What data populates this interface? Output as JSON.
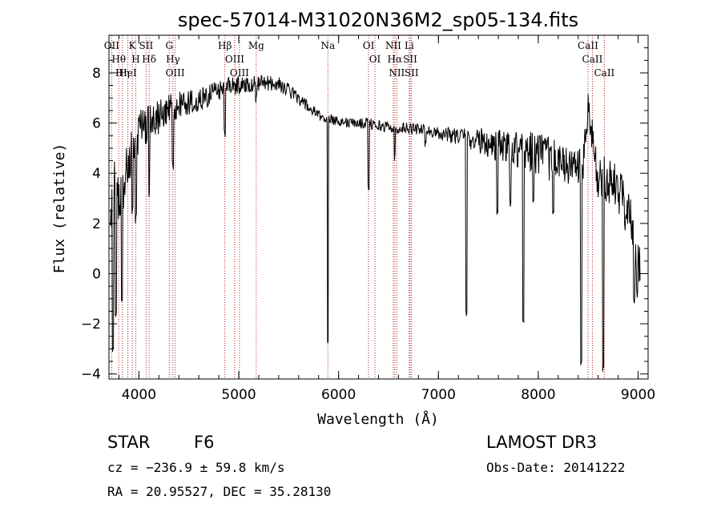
{
  "chart_data": {
    "type": "line",
    "title": "spec-57014-M31020N36M2_sp05-134.fits",
    "xlabel": "Wavelength (Å)",
    "ylabel": "Flux (relative)",
    "xlim": [
      3700,
      9100
    ],
    "ylim": [
      -4.2,
      9.5
    ],
    "xticks": [
      "4000",
      "5000",
      "6000",
      "7000",
      "8000",
      "9000"
    ],
    "yticks": [
      "-4",
      "-2",
      "0",
      "2",
      "4",
      "6",
      "8"
    ],
    "grid": false,
    "colors": {
      "spectrum": "#000000",
      "line_markers": "#b22222"
    },
    "spectral_lines": [
      {
        "label": "Hθ",
        "wavelength": 3798
      },
      {
        "label": "OII",
        "wavelength": 3727
      },
      {
        "label": "Hη",
        "wavelength": 3835
      },
      {
        "label": "K",
        "wavelength": 3934
      },
      {
        "label": "HeI",
        "wavelength": 3889
      },
      {
        "label": "H",
        "wavelength": 3969
      },
      {
        "label": "SII",
        "wavelength": 4072
      },
      {
        "label": "Hδ",
        "wavelength": 4102
      },
      {
        "label": "OIII",
        "wavelength": 4363
      },
      {
        "label": "Hγ",
        "wavelength": 4341
      },
      {
        "label": "G",
        "wavelength": 4304
      },
      {
        "label": "Hβ",
        "wavelength": 4861
      },
      {
        "label": "OIII",
        "wavelength": 4959
      },
      {
        "label": "OIII",
        "wavelength": 5007
      },
      {
        "label": "Mg",
        "wavelength": 5175
      },
      {
        "label": "Na",
        "wavelength": 5893
      },
      {
        "label": "OI",
        "wavelength": 6300
      },
      {
        "label": "OI",
        "wavelength": 6364
      },
      {
        "label": "Hα",
        "wavelength": 6563
      },
      {
        "label": "NII",
        "wavelength": 6548
      },
      {
        "label": "NII",
        "wavelength": 6583
      },
      {
        "label": "SII",
        "wavelength": 6717
      },
      {
        "label": "Li",
        "wavelength": 6708
      },
      {
        "label": "SII",
        "wavelength": 6731
      },
      {
        "label": "CaII",
        "wavelength": 8498
      },
      {
        "label": "CaII",
        "wavelength": 8542
      },
      {
        "label": "CaII",
        "wavelength": 8662
      }
    ],
    "continuum": [
      [
        3700,
        2.0
      ],
      [
        3800,
        3.5
      ],
      [
        3900,
        4.6
      ],
      [
        4000,
        5.5
      ],
      [
        4100,
        6.0
      ],
      [
        4200,
        6.3
      ],
      [
        4300,
        6.5
      ],
      [
        4400,
        6.7
      ],
      [
        4500,
        6.8
      ],
      [
        4600,
        6.9
      ],
      [
        4700,
        7.1
      ],
      [
        4800,
        7.3
      ],
      [
        4900,
        7.45
      ],
      [
        5000,
        7.5
      ],
      [
        5100,
        7.55
      ],
      [
        5200,
        7.6
      ],
      [
        5300,
        7.6
      ],
      [
        5400,
        7.55
      ],
      [
        5500,
        7.3
      ],
      [
        5600,
        7.0
      ],
      [
        5700,
        6.6
      ],
      [
        5800,
        6.3
      ],
      [
        5900,
        6.15
      ],
      [
        6000,
        6.1
      ],
      [
        6100,
        6.0
      ],
      [
        6200,
        6.0
      ],
      [
        6300,
        6.0
      ],
      [
        6400,
        5.9
      ],
      [
        6500,
        5.85
      ],
      [
        6600,
        5.8
      ],
      [
        6700,
        5.8
      ],
      [
        6800,
        5.75
      ],
      [
        6900,
        5.7
      ],
      [
        7000,
        5.6
      ],
      [
        7100,
        5.55
      ],
      [
        7200,
        5.5
      ],
      [
        7300,
        5.4
      ],
      [
        7400,
        5.3
      ],
      [
        7500,
        5.2
      ],
      [
        7600,
        5.1
      ],
      [
        7700,
        5.0
      ],
      [
        7800,
        5.0
      ],
      [
        7900,
        4.9
      ],
      [
        8000,
        4.8
      ],
      [
        8100,
        4.6
      ],
      [
        8200,
        4.4
      ],
      [
        8300,
        4.3
      ],
      [
        8400,
        4.2
      ],
      [
        8450,
        4.3
      ],
      [
        8500,
        6.5
      ],
      [
        8600,
        3.8
      ],
      [
        8700,
        3.7
      ],
      [
        8800,
        3.3
      ],
      [
        8900,
        2.6
      ],
      [
        9000,
        0.5
      ]
    ],
    "absorption_features": [
      [
        3740,
        -3.0
      ],
      [
        3770,
        -1.5
      ],
      [
        3830,
        -1.0
      ],
      [
        3934,
        2.5
      ],
      [
        3969,
        2.2
      ],
      [
        4102,
        3.2
      ],
      [
        4340,
        4.3
      ],
      [
        4861,
        5.6
      ],
      [
        5175,
        7.0
      ],
      [
        5893,
        -2.9
      ],
      [
        6300,
        3.5
      ],
      [
        6563,
        4.6
      ],
      [
        6870,
        5.2
      ],
      [
        7280,
        -1.5
      ],
      [
        7590,
        2.5
      ],
      [
        7720,
        2.8
      ],
      [
        7850,
        -1.8
      ],
      [
        7950,
        2.8
      ],
      [
        8150,
        2.5
      ],
      [
        8430,
        -3.5
      ],
      [
        8650,
        -3.8
      ],
      [
        8960,
        -1.0
      ],
      [
        8990,
        -0.8
      ]
    ],
    "noise_amplitude": [
      [
        3700,
        1.8
      ],
      [
        4000,
        1.0
      ],
      [
        4400,
        0.55
      ],
      [
        5000,
        0.35
      ],
      [
        6000,
        0.2
      ],
      [
        7000,
        0.25
      ],
      [
        7500,
        0.6
      ],
      [
        8000,
        0.9
      ],
      [
        8500,
        0.8
      ],
      [
        9000,
        1.2
      ]
    ]
  },
  "info": {
    "object_class": "STAR",
    "subclass": "F6",
    "survey": "LAMOST DR3",
    "velocity": "cz = −236.9 ± 59.8 km/s",
    "obs_date": "Obs-Date: 20141222",
    "coords": "RA =  20.95527, DEC =  35.28130"
  }
}
